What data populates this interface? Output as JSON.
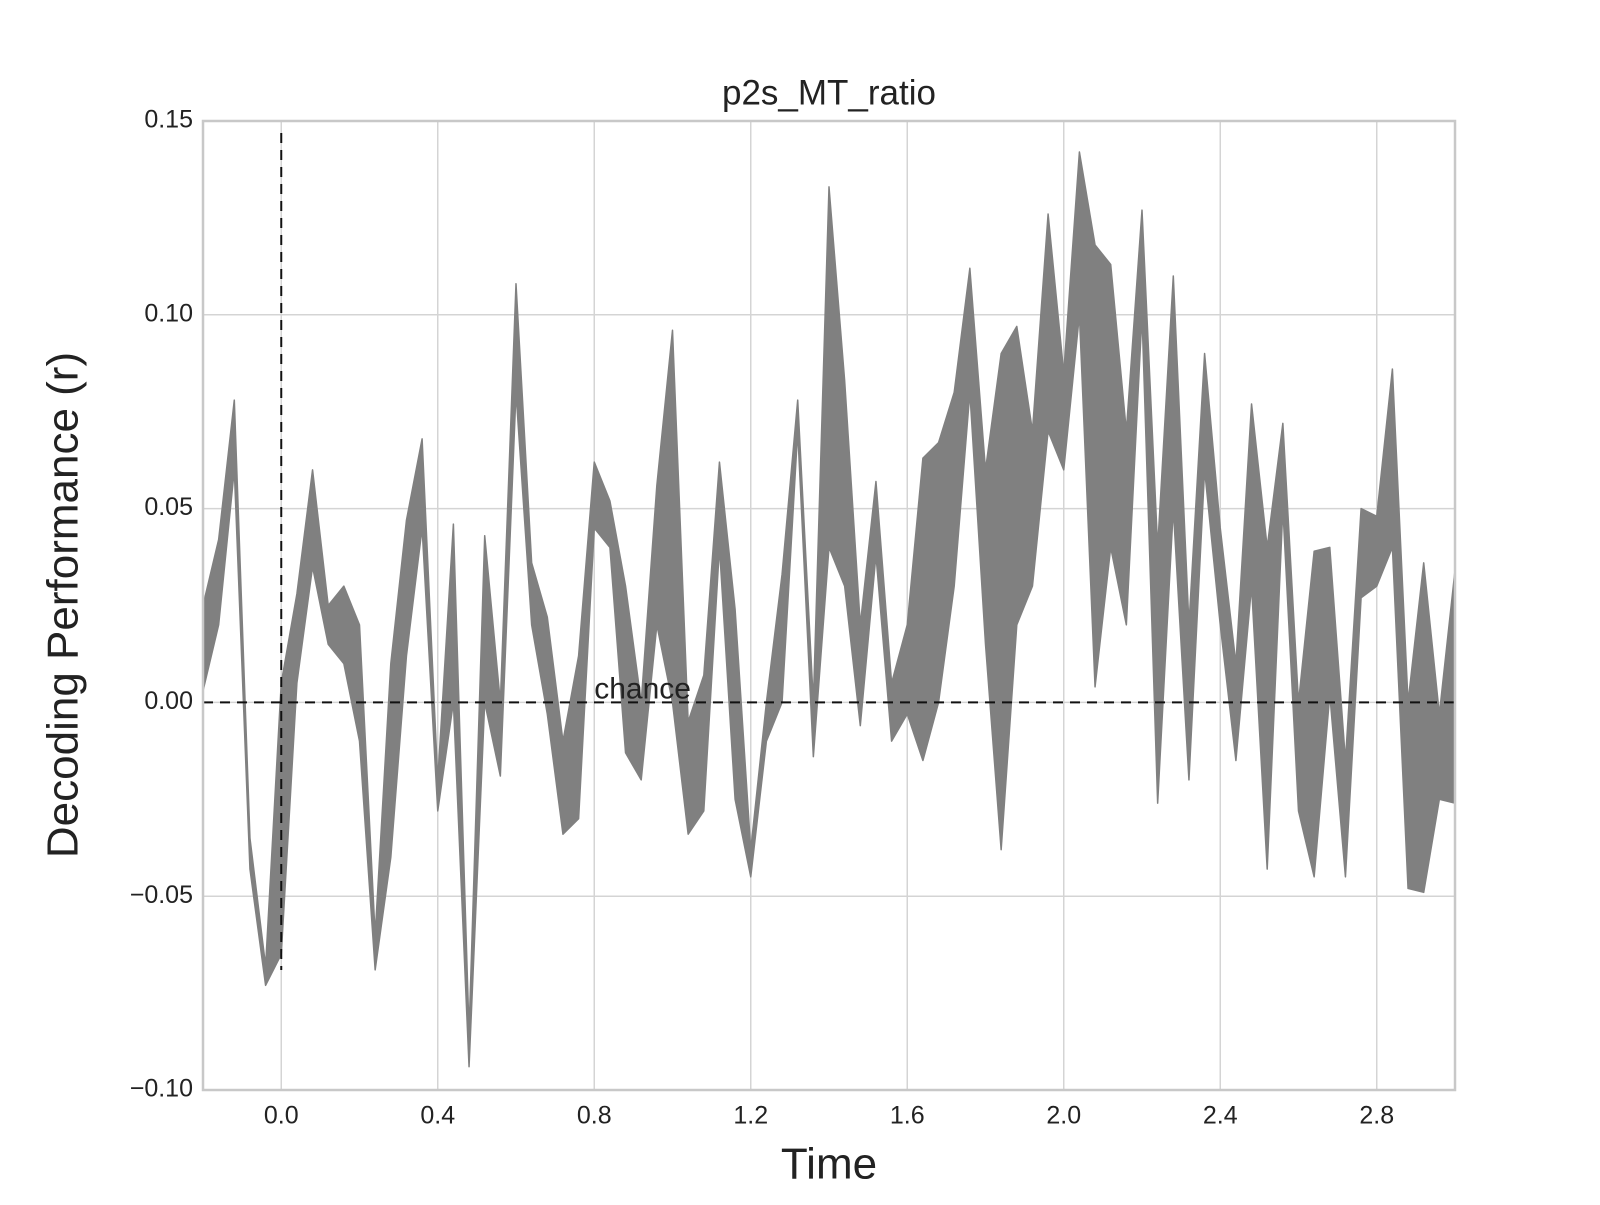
{
  "chart_data": {
    "type": "band",
    "title": "p2s_MT_ratio",
    "x_label": "Time",
    "y_label": "Decoding Performance (r)",
    "color": "#808080",
    "x": [
      -0.2,
      -0.16,
      -0.12,
      -0.08,
      -0.04,
      0.0,
      0.04,
      0.08,
      0.12,
      0.16,
      0.2,
      0.24,
      0.28,
      0.32,
      0.36,
      0.4,
      0.44,
      0.48,
      0.52,
      0.56,
      0.6,
      0.64,
      0.68,
      0.72,
      0.76,
      0.8,
      0.84,
      0.88,
      0.92,
      0.96,
      1.0,
      1.04,
      1.08,
      1.12,
      1.16,
      1.2,
      1.24,
      1.28,
      1.32,
      1.36,
      1.4,
      1.44,
      1.48,
      1.52,
      1.56,
      1.6,
      1.64,
      1.68,
      1.72,
      1.76,
      1.8,
      1.84,
      1.88,
      1.92,
      1.96,
      2.0,
      2.04,
      2.08,
      2.12,
      2.16,
      2.2,
      2.24,
      2.28,
      2.32,
      2.36,
      2.4,
      2.44,
      2.48,
      2.52,
      2.56,
      2.6,
      2.64,
      2.68,
      2.72,
      2.76,
      2.8,
      2.84,
      2.88,
      2.92,
      2.96,
      3.0
    ],
    "lower": [
      0.003,
      0.02,
      0.06,
      -0.043,
      -0.073,
      -0.065,
      0.005,
      0.035,
      0.015,
      0.01,
      -0.01,
      -0.069,
      -0.04,
      0.012,
      0.045,
      -0.028,
      0.0,
      -0.094,
      0.0,
      -0.019,
      0.08,
      0.02,
      -0.003,
      -0.034,
      -0.03,
      0.045,
      0.04,
      -0.013,
      -0.02,
      0.02,
      0.0,
      -0.034,
      -0.028,
      0.04,
      -0.025,
      -0.045,
      -0.01,
      0.0,
      0.07,
      -0.014,
      0.04,
      0.03,
      -0.006,
      0.038,
      -0.01,
      -0.003,
      -0.015,
      0.0,
      0.03,
      0.08,
      0.015,
      -0.038,
      0.02,
      0.03,
      0.07,
      0.06,
      0.1,
      0.004,
      0.04,
      0.02,
      0.1,
      -0.026,
      0.05,
      -0.02,
      0.06,
      0.02,
      -0.015,
      0.03,
      -0.043,
      0.05,
      -0.028,
      -0.045,
      0.002,
      -0.045,
      0.027,
      0.03,
      0.04,
      -0.048,
      -0.049,
      -0.025,
      -0.026
    ],
    "upper": [
      0.025,
      0.042,
      0.078,
      -0.035,
      -0.068,
      0.005,
      0.028,
      0.06,
      0.025,
      0.03,
      0.02,
      -0.06,
      0.01,
      0.047,
      0.068,
      -0.02,
      0.046,
      -0.085,
      0.043,
      0.0,
      0.108,
      0.036,
      0.022,
      -0.01,
      0.012,
      0.062,
      0.052,
      0.03,
      0.0,
      0.056,
      0.096,
      -0.005,
      0.007,
      0.062,
      0.024,
      -0.038,
      0.0,
      0.033,
      0.078,
      0.0,
      0.133,
      0.083,
      0.02,
      0.057,
      0.005,
      0.02,
      0.063,
      0.067,
      0.08,
      0.112,
      0.06,
      0.09,
      0.097,
      0.07,
      0.126,
      0.085,
      0.142,
      0.118,
      0.113,
      0.07,
      0.127,
      0.04,
      0.11,
      0.02,
      0.09,
      0.045,
      0.01,
      0.077,
      0.04,
      0.072,
      0.0,
      0.039,
      0.04,
      -0.015,
      0.05,
      0.048,
      0.086,
      0.0,
      0.036,
      -0.003,
      0.034
    ],
    "xlim": [
      -0.2,
      3.0
    ],
    "ylim": [
      -0.1,
      0.15
    ],
    "xticks": [
      {
        "value": 0.0,
        "label": "0.0"
      },
      {
        "value": 0.4,
        "label": "0.4"
      },
      {
        "value": 0.8,
        "label": "0.8"
      },
      {
        "value": 1.2,
        "label": "1.2"
      },
      {
        "value": 1.6,
        "label": "1.6"
      },
      {
        "value": 2.0,
        "label": "2.0"
      },
      {
        "value": 2.4,
        "label": "2.4"
      },
      {
        "value": 2.8,
        "label": "2.8"
      }
    ],
    "yticks": [
      {
        "value": -0.1,
        "label": "−0.10"
      },
      {
        "value": -0.05,
        "label": "−0.05"
      },
      {
        "value": 0.0,
        "label": "0.00"
      },
      {
        "value": 0.05,
        "label": "0.05"
      },
      {
        "value": 0.1,
        "label": "0.10"
      },
      {
        "value": 0.15,
        "label": "0.15"
      }
    ],
    "grid": true,
    "vline": 0,
    "hline": 0,
    "annotation": {
      "text": "chance",
      "x": 0.8,
      "y": 0
    }
  }
}
